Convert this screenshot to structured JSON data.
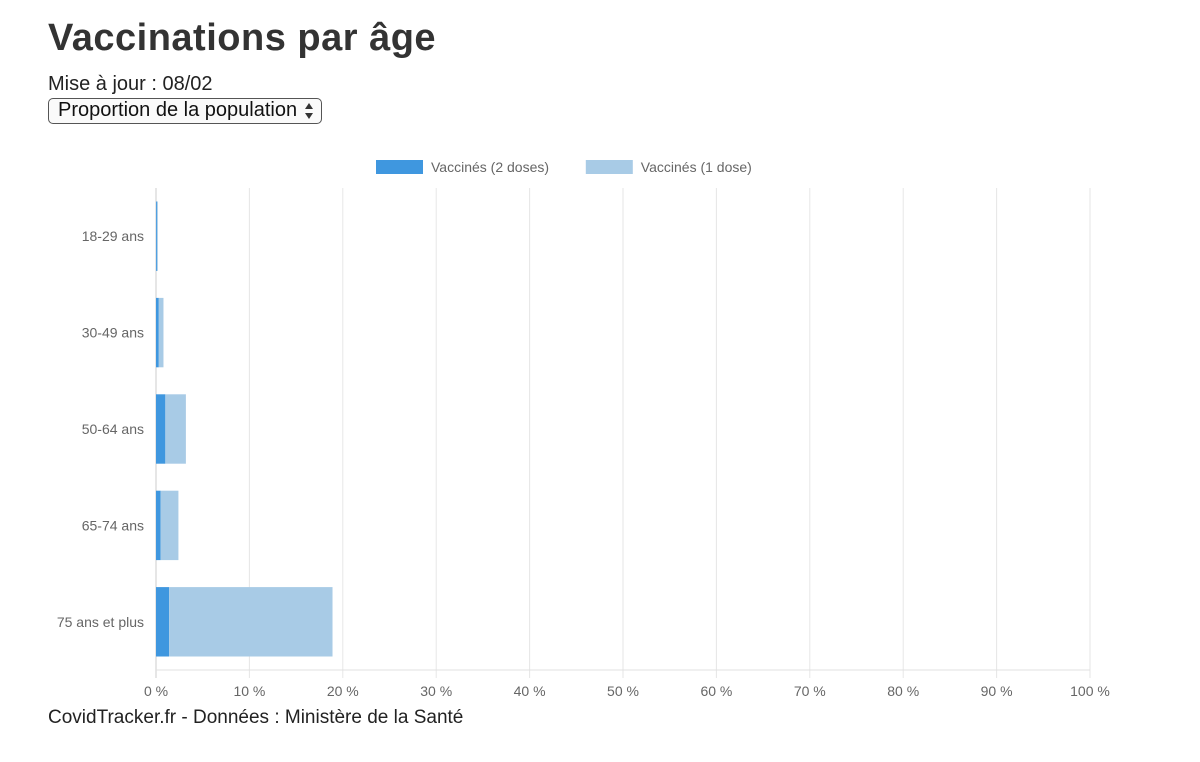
{
  "header": {
    "title": "Vaccinations par âge",
    "updated": "Mise à jour : 08/02"
  },
  "selector": {
    "selected": "Proportion de la population"
  },
  "footer": {
    "source": "CovidTracker.fr - Données : Ministère de la Santé"
  },
  "chart_data": {
    "type": "bar",
    "orientation": "horizontal",
    "stacked": true,
    "categories": [
      "18-29 ans",
      "30-49 ans",
      "50-64 ans",
      "65-74 ans",
      "75 ans et plus"
    ],
    "series": [
      {
        "name": "Vaccinés (2 doses)",
        "color": "#3f97df",
        "values": [
          0.1,
          0.3,
          1.0,
          0.5,
          1.4
        ]
      },
      {
        "name": "Vaccinés (1 dose)",
        "color": "#a8cbe6",
        "values": [
          0.1,
          0.5,
          2.2,
          1.9,
          17.5
        ]
      }
    ],
    "xlim": [
      0,
      100
    ],
    "xticks": [
      0,
      10,
      20,
      30,
      40,
      50,
      60,
      70,
      80,
      90,
      100
    ],
    "tick_suffix": " %",
    "grid": true,
    "legend": "top"
  }
}
